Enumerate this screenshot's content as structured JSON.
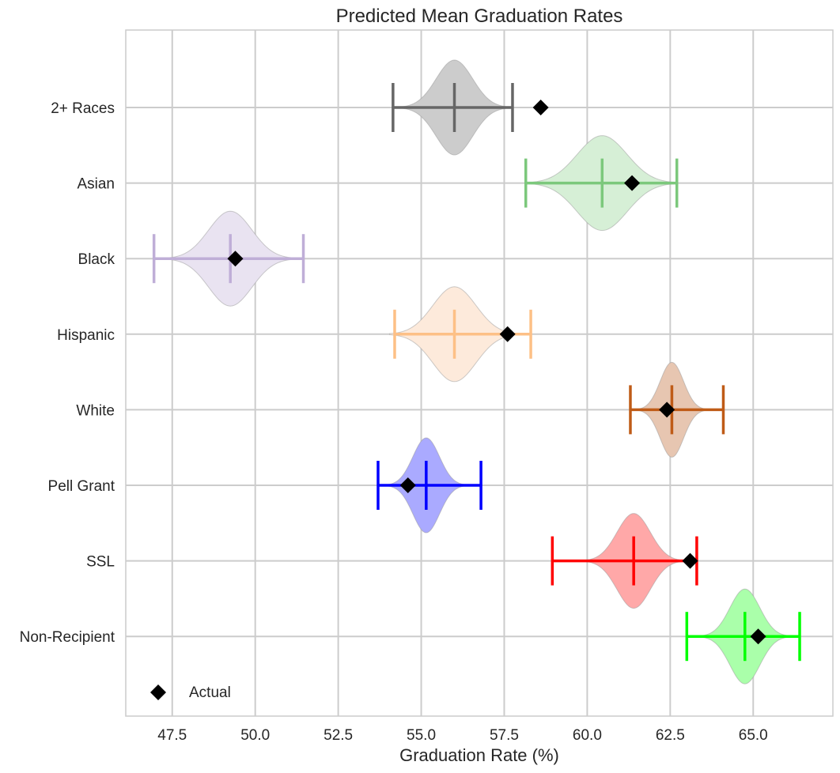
{
  "chart_data": {
    "type": "violin",
    "title": "Predicted Mean Graduation Rates",
    "xlabel": "Graduation Rate (%)",
    "ylabel": "",
    "xlim": [
      46.1,
      67.4
    ],
    "xticks": [
      47.5,
      50.0,
      52.5,
      55.0,
      57.5,
      60.0,
      62.5,
      65.0
    ],
    "xtick_labels": [
      "47.5",
      "50.0",
      "52.5",
      "55.0",
      "57.5",
      "60.0",
      "62.5",
      "65.0"
    ],
    "grid": true,
    "legend": {
      "placement": "lower-left",
      "entries": [
        {
          "label": "Actual",
          "marker": "diamond",
          "color": "#000000"
        }
      ]
    },
    "series": [
      {
        "name": "2+ Races",
        "color": "#666666",
        "fill": "#cccccc",
        "min": 54.15,
        "median": 56.0,
        "max": 57.75,
        "actual": 58.6,
        "std": 0.55
      },
      {
        "name": "Asian",
        "color": "#7cc87c",
        "fill": "#d6efd6",
        "min": 58.15,
        "median": 60.45,
        "max": 62.7,
        "actual": 61.35,
        "std": 0.75
      },
      {
        "name": "Black",
        "color": "#bfaed7",
        "fill": "#e9e3f1",
        "min": 46.95,
        "median": 49.25,
        "max": 51.45,
        "actual": 49.4,
        "std": 0.65
      },
      {
        "name": "Hispanic",
        "color": "#fdc086",
        "fill": "#fdeadb",
        "min": 54.2,
        "median": 56.0,
        "max": 58.3,
        "actual": 57.6,
        "std": 0.65
      },
      {
        "name": "White",
        "color": "#bf5b17",
        "fill": "#e7c6b1",
        "min": 61.3,
        "median": 62.55,
        "max": 64.1,
        "actual": 62.4,
        "std": 0.35
      },
      {
        "name": "Pell Grant",
        "color": "#0000ff",
        "fill": "#aaaaff",
        "min": 53.7,
        "median": 55.15,
        "max": 56.8,
        "actual": 54.6,
        "std": 0.4
      },
      {
        "name": "SSL",
        "color": "#ff0000",
        "fill": "#ffa8a8",
        "min": 58.95,
        "median": 61.4,
        "max": 63.3,
        "actual": 63.1,
        "std": 0.5
      },
      {
        "name": "Non-Recipient",
        "color": "#00ff00",
        "fill": "#aaffaa",
        "min": 63.0,
        "median": 64.75,
        "max": 66.4,
        "actual": 65.15,
        "std": 0.45
      }
    ]
  }
}
